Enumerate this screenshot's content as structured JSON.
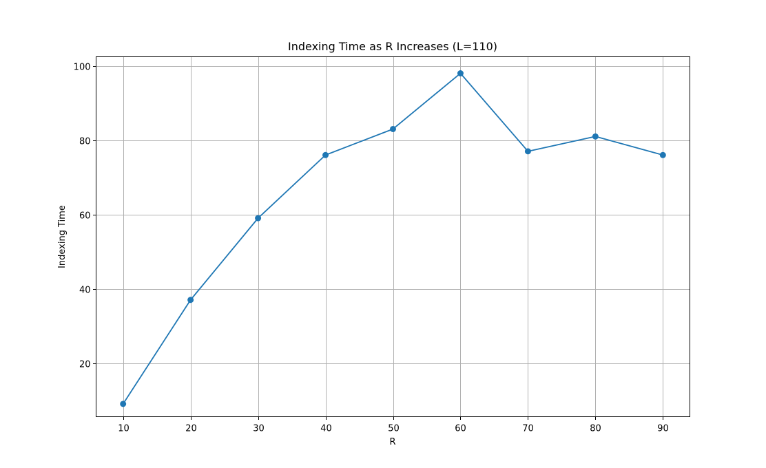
{
  "chart_data": {
    "type": "line",
    "title": "Indexing Time as R Increases (L=110)",
    "xlabel": "R",
    "ylabel": "Indexing Time",
    "x": [
      10,
      20,
      30,
      40,
      50,
      60,
      70,
      80,
      90
    ],
    "series": [
      {
        "values": [
          9,
          37,
          59,
          76,
          83,
          98,
          77,
          81,
          76
        ]
      }
    ],
    "xlim": [
      6,
      94
    ],
    "ylim": [
      5.55,
      102.45
    ],
    "xticks": [
      10,
      20,
      30,
      40,
      50,
      60,
      70,
      80,
      90
    ],
    "yticks": [
      20,
      40,
      60,
      80,
      100
    ],
    "grid": true,
    "marker": "circle",
    "color": "#1f77b4"
  }
}
